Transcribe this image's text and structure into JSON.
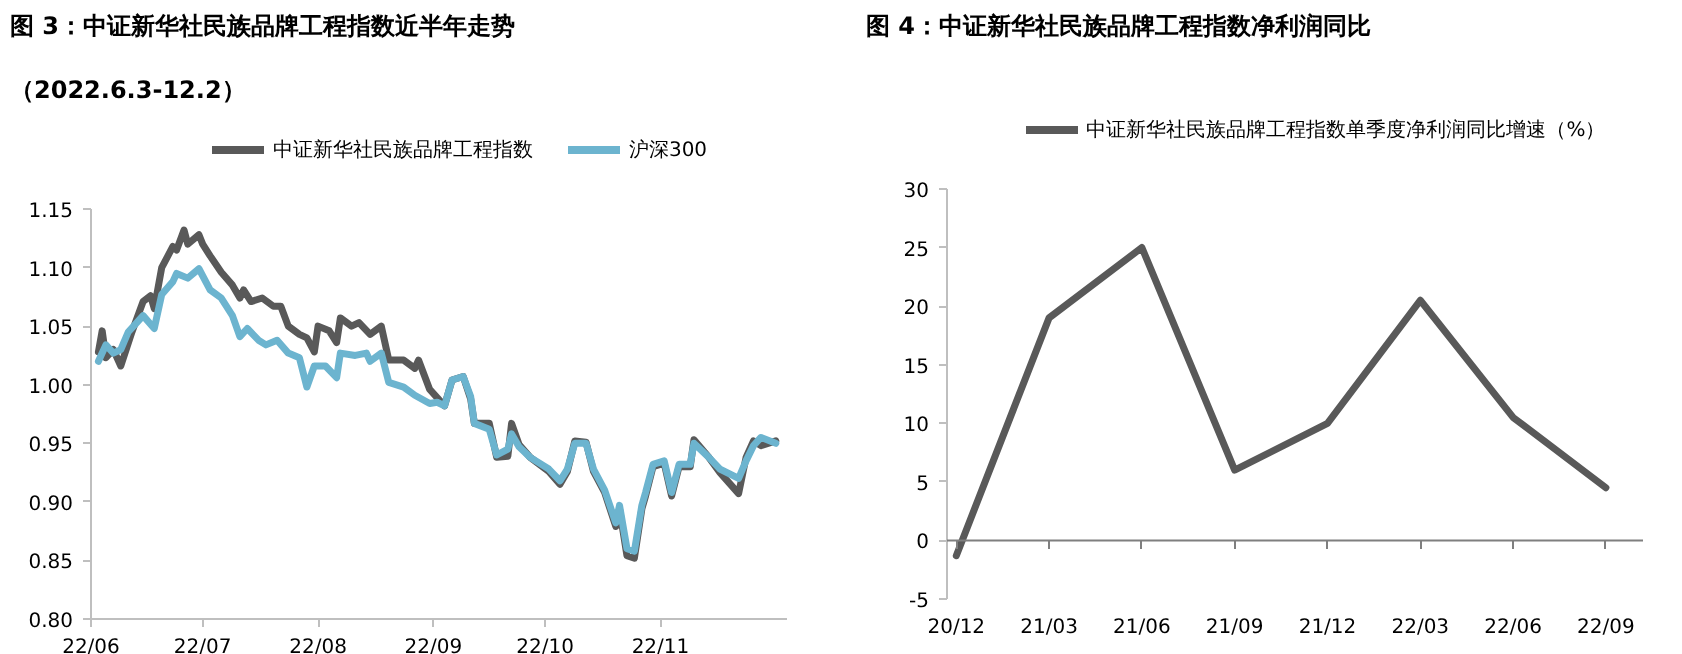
{
  "chart_data": [
    {
      "type": "line",
      "title": "图 3：中证新华社民族品牌工程指数近半年走势",
      "subtitle": "（2022.6.3-12.2）",
      "legend": "top",
      "grid": false,
      "xlim": [
        "2022-06-01",
        "2022-12-05"
      ],
      "xticks": [
        {
          "value": "2022-06-01",
          "label": "22/06"
        },
        {
          "value": "2022-07-01",
          "label": "22/07"
        },
        {
          "value": "2022-08-01",
          "label": "22/08"
        },
        {
          "value": "2022-09-01",
          "label": "22/09"
        },
        {
          "value": "2022-10-01",
          "label": "22/10"
        },
        {
          "value": "2022-11-01",
          "label": "22/11"
        }
      ],
      "ylim": [
        0.8,
        1.15
      ],
      "yticks": [
        {
          "value": 0.8,
          "label": "0.80"
        },
        {
          "value": 0.85,
          "label": "0.85"
        },
        {
          "value": 0.9,
          "label": "0.90"
        },
        {
          "value": 0.95,
          "label": "0.95"
        },
        {
          "value": 1.0,
          "label": "1.00"
        },
        {
          "value": 1.05,
          "label": "1.05"
        },
        {
          "value": 1.1,
          "label": "1.10"
        },
        {
          "value": 1.15,
          "label": "1.15"
        }
      ],
      "series": [
        {
          "name": "中证新华社民族品牌工程指数",
          "color": "#595959",
          "x": [
            "2022-06-03",
            "2022-06-04",
            "2022-06-05",
            "2022-06-07",
            "2022-06-09",
            "2022-06-12",
            "2022-06-15",
            "2022-06-17",
            "2022-06-18",
            "2022-06-20",
            "2022-06-23",
            "2022-06-24",
            "2022-06-26",
            "2022-06-27",
            "2022-06-30",
            "2022-07-01",
            "2022-07-03",
            "2022-07-06",
            "2022-07-09",
            "2022-07-11",
            "2022-07-12",
            "2022-07-14",
            "2022-07-17",
            "2022-07-20",
            "2022-07-22",
            "2022-07-24",
            "2022-07-27",
            "2022-07-29",
            "2022-07-31",
            "2022-08-01",
            "2022-08-04",
            "2022-08-06",
            "2022-08-07",
            "2022-08-10",
            "2022-08-12",
            "2022-08-15",
            "2022-08-18",
            "2022-08-20",
            "2022-08-24",
            "2022-08-27",
            "2022-08-28",
            "2022-08-31",
            "2022-09-02",
            "2022-09-04",
            "2022-09-06",
            "2022-09-09",
            "2022-09-11",
            "2022-09-12",
            "2022-09-16",
            "2022-09-18",
            "2022-09-21",
            "2022-09-22",
            "2022-09-24",
            "2022-09-27",
            "2022-10-02",
            "2022-10-05",
            "2022-10-07",
            "2022-10-09",
            "2022-10-12",
            "2022-10-14",
            "2022-10-17",
            "2022-10-20",
            "2022-10-21",
            "2022-10-23",
            "2022-10-25",
            "2022-10-27",
            "2022-10-28",
            "2022-10-30",
            "2022-11-02",
            "2022-11-04",
            "2022-11-06",
            "2022-11-09",
            "2022-11-10",
            "2022-11-14",
            "2022-11-17",
            "2022-11-22",
            "2022-11-24",
            "2022-11-26",
            "2022-11-28",
            "2022-12-02"
          ],
          "values": [
            1.028,
            1.046,
            1.023,
            1.03,
            1.016,
            1.045,
            1.071,
            1.076,
            1.065,
            1.1,
            1.118,
            1.115,
            1.132,
            1.12,
            1.128,
            1.12,
            1.11,
            1.096,
            1.085,
            1.074,
            1.081,
            1.071,
            1.074,
            1.067,
            1.067,
            1.05,
            1.043,
            1.04,
            1.028,
            1.05,
            1.046,
            1.036,
            1.057,
            1.05,
            1.053,
            1.043,
            1.05,
            1.021,
            1.021,
            1.014,
            1.021,
            0.996,
            0.989,
            0.982,
            1.004,
            1.007,
            0.988,
            0.967,
            0.967,
            0.938,
            0.939,
            0.967,
            0.949,
            0.938,
            0.926,
            0.915,
            0.926,
            0.952,
            0.951,
            0.926,
            0.908,
            0.879,
            0.894,
            0.854,
            0.852,
            0.894,
            0.905,
            0.93,
            0.933,
            0.905,
            0.93,
            0.93,
            0.953,
            0.938,
            0.925,
            0.907,
            0.938,
            0.952,
            0.948,
            0.952
          ]
        },
        {
          "name": "沪深300",
          "color": "#6cb4cf",
          "x": [
            "2022-06-03",
            "2022-06-05",
            "2022-06-07",
            "2022-06-09",
            "2022-06-11",
            "2022-06-13",
            "2022-06-15",
            "2022-06-18",
            "2022-06-20",
            "2022-06-23",
            "2022-06-24",
            "2022-06-27",
            "2022-06-30",
            "2022-07-03",
            "2022-07-06",
            "2022-07-09",
            "2022-07-11",
            "2022-07-13",
            "2022-07-16",
            "2022-07-18",
            "2022-07-21",
            "2022-07-24",
            "2022-07-27",
            "2022-07-29",
            "2022-07-31",
            "2022-08-03",
            "2022-08-06",
            "2022-08-07",
            "2022-08-11",
            "2022-08-14",
            "2022-08-15",
            "2022-08-18",
            "2022-08-20",
            "2022-08-24",
            "2022-08-27",
            "2022-08-31",
            "2022-09-02",
            "2022-09-04",
            "2022-09-06",
            "2022-09-09",
            "2022-09-11",
            "2022-09-12",
            "2022-09-16",
            "2022-09-18",
            "2022-09-21",
            "2022-09-22",
            "2022-09-24",
            "2022-09-27",
            "2022-10-02",
            "2022-10-05",
            "2022-10-07",
            "2022-10-09",
            "2022-10-12",
            "2022-10-14",
            "2022-10-17",
            "2022-10-20",
            "2022-10-21",
            "2022-10-23",
            "2022-10-25",
            "2022-10-27",
            "2022-10-28",
            "2022-10-30",
            "2022-11-02",
            "2022-11-04",
            "2022-11-06",
            "2022-11-09",
            "2022-11-10",
            "2022-11-14",
            "2022-11-17",
            "2022-11-22",
            "2022-11-24",
            "2022-11-26",
            "2022-11-28",
            "2022-12-02"
          ],
          "values": [
            1.02,
            1.034,
            1.027,
            1.03,
            1.045,
            1.052,
            1.059,
            1.048,
            1.077,
            1.088,
            1.095,
            1.091,
            1.099,
            1.081,
            1.074,
            1.059,
            1.041,
            1.048,
            1.038,
            1.034,
            1.038,
            1.027,
            1.023,
            0.998,
            1.016,
            1.016,
            1.006,
            1.027,
            1.025,
            1.027,
            1.02,
            1.027,
            1.002,
            0.998,
            0.991,
            0.984,
            0.985,
            0.982,
            1.004,
            1.007,
            0.99,
            0.967,
            0.962,
            0.94,
            0.945,
            0.958,
            0.947,
            0.938,
            0.928,
            0.918,
            0.928,
            0.95,
            0.95,
            0.928,
            0.91,
            0.882,
            0.897,
            0.86,
            0.858,
            0.897,
            0.908,
            0.932,
            0.935,
            0.908,
            0.932,
            0.932,
            0.95,
            0.938,
            0.928,
            0.92,
            0.935,
            0.948,
            0.955,
            0.95
          ]
        }
      ]
    },
    {
      "type": "line",
      "title": "图 4：中证新华社民族品牌工程指数净利润同比",
      "legend": "top",
      "grid": false,
      "categories": [
        "20/12",
        "21/03",
        "21/06",
        "21/09",
        "21/12",
        "22/03",
        "22/06",
        "22/09"
      ],
      "ylim": [
        -5,
        30
      ],
      "yticks": [
        -5,
        0,
        5,
        10,
        15,
        20,
        25,
        30
      ],
      "ref_lines": [
        {
          "axis": "y",
          "value": 0,
          "color": "#7f7f7f"
        }
      ],
      "series": [
        {
          "name": "中证新华社民族品牌工程指数单季度净利润同比增速（%）",
          "color": "#595959",
          "values": [
            -1.3,
            19,
            25,
            6,
            10,
            20.5,
            10.5,
            4.5
          ]
        }
      ]
    }
  ]
}
